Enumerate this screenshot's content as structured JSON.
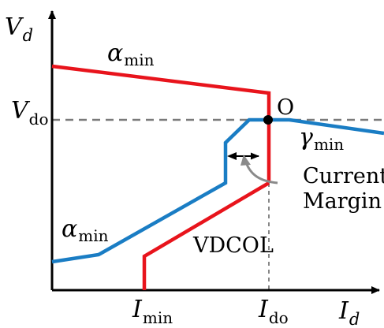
{
  "axes": {
    "y_symbol": "V",
    "y_sub": "d",
    "x_symbol": "I",
    "x_sub": "d",
    "vdo_symbol": "V",
    "vdo_sub": "do",
    "imin_symbol": "I",
    "imin_sub": "min",
    "ido_symbol": "I",
    "ido_sub": "do"
  },
  "labels": {
    "alpha_top_symbol": "α",
    "alpha_top_sub": "min",
    "alpha_bottom_symbol": "α",
    "alpha_bottom_sub": "min",
    "gamma_symbol": "γ",
    "gamma_sub": "min",
    "operating_point": "O",
    "current_margin_line1": "Current",
    "current_margin_line2": "Margin",
    "vdcol": "VDCOL"
  },
  "colors": {
    "rectifier_curve": "#e8141c",
    "inverter_curve": "#1a7dc4",
    "axis": "#000000",
    "reference_line": "#7a7a7a",
    "annotation_arrow": "#909090"
  }
}
